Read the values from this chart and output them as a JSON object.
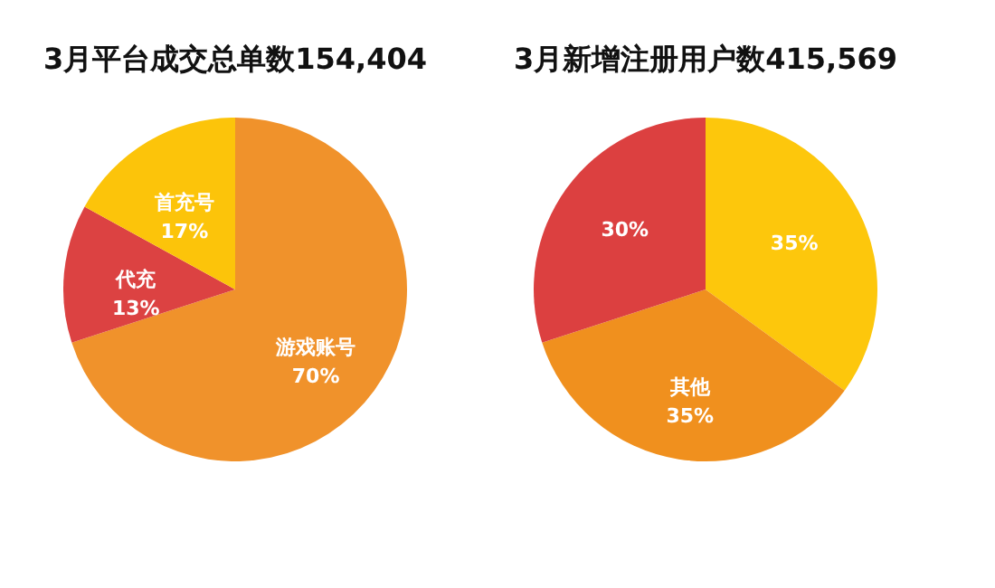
{
  "chart_data": [
    {
      "type": "pie",
      "title": "3月平台成交总单数154,404",
      "categories": [
        "游戏账号",
        "代充",
        "首充号"
      ],
      "values": [
        70,
        13,
        17
      ],
      "value_labels": [
        "70%",
        "13%",
        "17%"
      ],
      "colors": [
        "#f0922b",
        "#dc4242",
        "#fcc40a"
      ]
    },
    {
      "type": "pie",
      "title": "3月新增注册用户数415,569",
      "categories": [
        null,
        "其他",
        null
      ],
      "values": [
        35,
        35,
        30
      ],
      "value_labels": [
        "35%",
        "35%",
        "30%"
      ],
      "colors": [
        "#fdc70c",
        "#f0901e",
        "#dc4040"
      ]
    }
  ]
}
